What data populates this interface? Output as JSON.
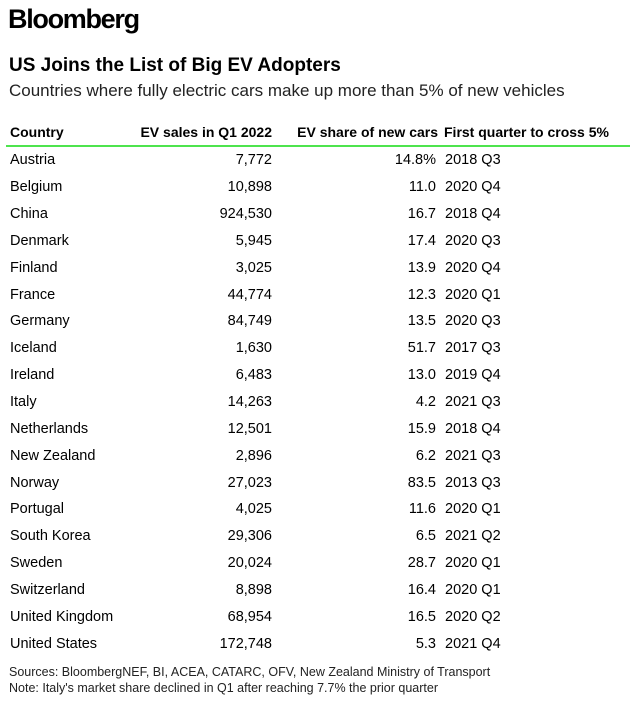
{
  "brand": "Bloomberg",
  "title": "US Joins the List of Big EV Adopters",
  "subtitle": "Countries where fully electric cars make up more than 5% of new vehicles",
  "colors": {
    "header_rule": "#4ee44e",
    "text": "#000000"
  },
  "chart_data": {
    "type": "table",
    "title": "US Joins the List of Big EV Adopters",
    "subtitle": "Countries where fully electric cars make up more than 5% of new vehicles",
    "columns": [
      "Country",
      "EV sales in Q1 2022",
      "EV share of new cars",
      "First quarter to cross 5%"
    ],
    "rows": [
      {
        "country": "Austria",
        "sales": "7,772",
        "share": "14.8%",
        "first_quarter": "2018 Q3"
      },
      {
        "country": "Belgium",
        "sales": "10,898",
        "share": "11.0",
        "first_quarter": "2020 Q4"
      },
      {
        "country": "China",
        "sales": "924,530",
        "share": "16.7",
        "first_quarter": "2018 Q4"
      },
      {
        "country": "Denmark",
        "sales": "5,945",
        "share": "17.4",
        "first_quarter": "2020 Q3"
      },
      {
        "country": "Finland",
        "sales": "3,025",
        "share": "13.9",
        "first_quarter": "2020 Q4"
      },
      {
        "country": "France",
        "sales": "44,774",
        "share": "12.3",
        "first_quarter": "2020 Q1"
      },
      {
        "country": "Germany",
        "sales": "84,749",
        "share": "13.5",
        "first_quarter": "2020 Q3"
      },
      {
        "country": "Iceland",
        "sales": "1,630",
        "share": "51.7",
        "first_quarter": "2017 Q3"
      },
      {
        "country": "Ireland",
        "sales": "6,483",
        "share": "13.0",
        "first_quarter": "2019 Q4"
      },
      {
        "country": "Italy",
        "sales": "14,263",
        "share": "4.2",
        "first_quarter": "2021 Q3"
      },
      {
        "country": "Netherlands",
        "sales": "12,501",
        "share": "15.9",
        "first_quarter": "2018 Q4"
      },
      {
        "country": "New Zealand",
        "sales": "2,896",
        "share": "6.2",
        "first_quarter": "2021 Q3"
      },
      {
        "country": "Norway",
        "sales": "27,023",
        "share": "83.5",
        "first_quarter": "2013 Q3"
      },
      {
        "country": "Portugal",
        "sales": "4,025",
        "share": "11.6",
        "first_quarter": "2020 Q1"
      },
      {
        "country": "South Korea",
        "sales": "29,306",
        "share": "6.5",
        "first_quarter": "2021 Q2"
      },
      {
        "country": "Sweden",
        "sales": "20,024",
        "share": "28.7",
        "first_quarter": "2020 Q1"
      },
      {
        "country": "Switzerland",
        "sales": "8,898",
        "share": "16.4",
        "first_quarter": "2020 Q1"
      },
      {
        "country": "United Kingdom",
        "sales": "68,954",
        "share": "16.5",
        "first_quarter": "2020 Q2"
      },
      {
        "country": "United States",
        "sales": "172,748",
        "share": "5.3",
        "first_quarter": "2021 Q4"
      }
    ]
  },
  "footer": {
    "sources": "Sources: BloombergNEF, BI, ACEA, CATARC, OFV, New Zealand Ministry of Transport",
    "note": "Note: Italy's market share declined in Q1 after reaching 7.7% the prior quarter"
  }
}
